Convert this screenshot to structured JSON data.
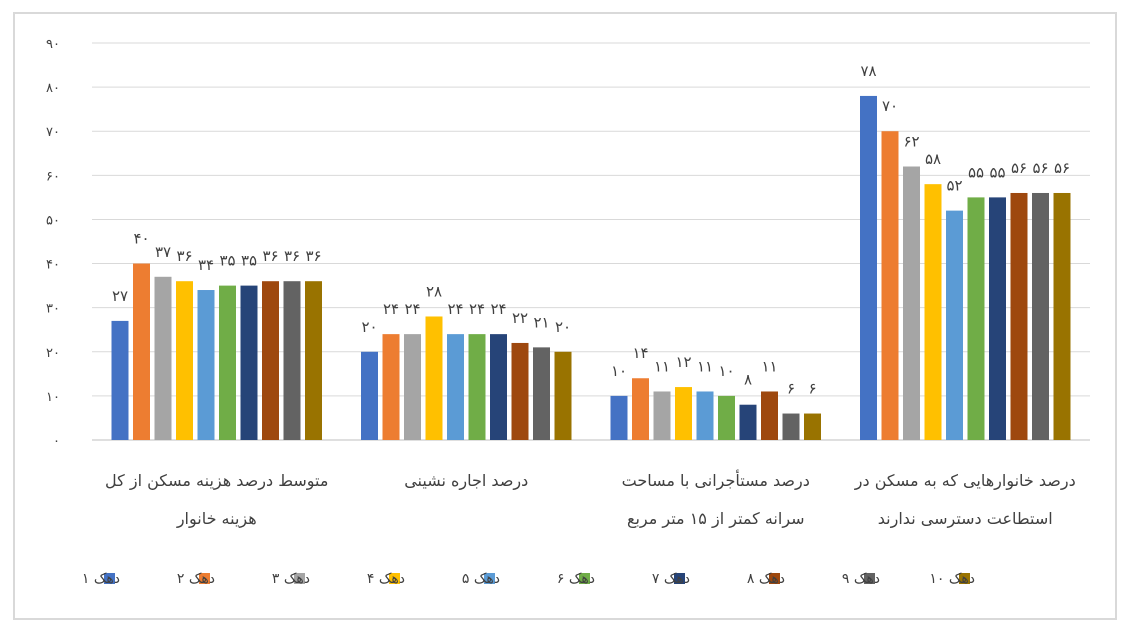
{
  "chart_data": {
    "type": "bar",
    "title": "",
    "xlabel": "",
    "ylabel": "",
    "ylim": [
      0,
      90
    ],
    "yticks": [
      0,
      10,
      20,
      30,
      40,
      50,
      60,
      70,
      80,
      90
    ],
    "ytick_labels": [
      "۰",
      "۱۰",
      "۲۰",
      "۳۰",
      "۴۰",
      "۵۰",
      "۶۰",
      "۷۰",
      "۸۰",
      "۹۰"
    ],
    "grid": true,
    "legend_position": "bottom",
    "categories": [
      [
        "متوسط درصد هزینه مسکن از کل",
        "هزینه خانوار"
      ],
      [
        "درصد اجاره نشینی"
      ],
      [
        "درصد مستأجرانی با مساحت",
        "سرانه کمتر از ۱۵ متر مربع"
      ],
      [
        "درصد خانوارهایی که به مسکن در",
        "استطاعت دسترسی ندارند"
      ]
    ],
    "series": [
      {
        "name": "دهک ۱",
        "color": "#4472c4",
        "values": [
          27,
          20,
          10,
          78
        ],
        "labels": [
          "۲۷",
          "۲۰",
          "۱۰",
          "۷۸"
        ]
      },
      {
        "name": "دهک ۲",
        "color": "#ed7d31",
        "values": [
          40,
          24,
          14,
          70
        ],
        "labels": [
          "۴۰",
          "۲۴",
          "۱۴",
          "۷۰"
        ]
      },
      {
        "name": "دهک ۳",
        "color": "#a5a5a5",
        "values": [
          37,
          24,
          11,
          62
        ],
        "labels": [
          "۳۷",
          "۲۴",
          "۱۱",
          "۶۲"
        ]
      },
      {
        "name": "دهک ۴",
        "color": "#ffc000",
        "values": [
          36,
          28,
          12,
          58
        ],
        "labels": [
          "۳۶",
          "۲۸",
          "۱۲",
          "۵۸"
        ]
      },
      {
        "name": "دهک ۵",
        "color": "#5b9bd5",
        "values": [
          34,
          24,
          11,
          52
        ],
        "labels": [
          "۳۴",
          "۲۴",
          "۱۱",
          "۵۲"
        ]
      },
      {
        "name": "دهک ۶",
        "color": "#70ad47",
        "values": [
          35,
          24,
          10,
          55
        ],
        "labels": [
          "۳۵",
          "۲۴",
          "۱۰",
          "۵۵"
        ]
      },
      {
        "name": "دهک ۷",
        "color": "#264478",
        "values": [
          35,
          24,
          8,
          55
        ],
        "labels": [
          "۳۵",
          "۲۴",
          "۸",
          "۵۵"
        ]
      },
      {
        "name": "دهک ۸",
        "color": "#9e480e",
        "values": [
          36,
          22,
          11,
          56
        ],
        "labels": [
          "۳۶",
          "۲۲",
          "۱۱",
          "۵۶"
        ]
      },
      {
        "name": "دهک ۹",
        "color": "#636363",
        "values": [
          36,
          21,
          6,
          56
        ],
        "labels": [
          "۳۶",
          "۲۱",
          "۶",
          "۵۶"
        ]
      },
      {
        "name": "دهک ۱۰",
        "color": "#997300",
        "values": [
          36,
          20,
          6,
          56
        ],
        "labels": [
          "۳۶",
          "۲۰",
          "۶",
          "۵۶"
        ]
      }
    ]
  }
}
